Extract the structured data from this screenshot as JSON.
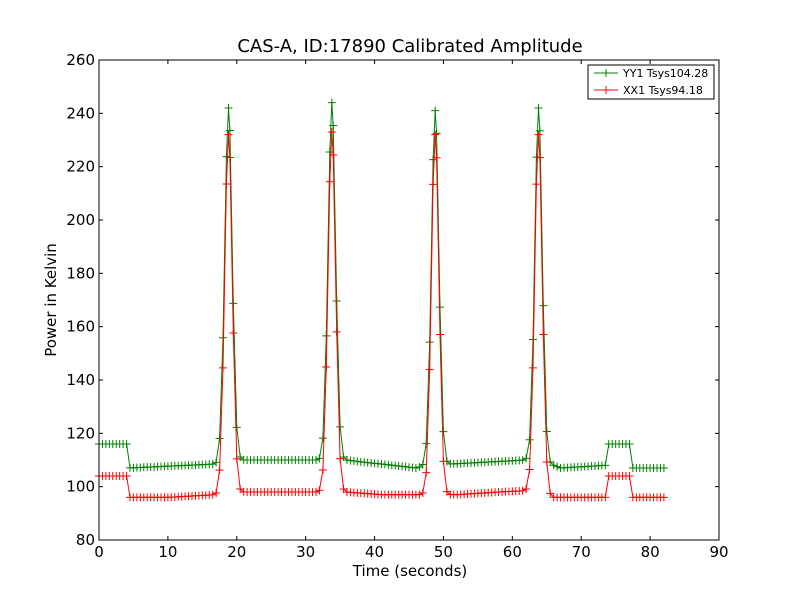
{
  "chart_data": {
    "type": "line",
    "title": "CAS-A, ID:17890 Calibrated Amplitude",
    "xlabel": "Time (seconds)",
    "ylabel": "Power in Kelvin",
    "xlim": [
      0,
      90
    ],
    "ylim": [
      80,
      260
    ],
    "xticks": [
      0,
      10,
      20,
      30,
      40,
      50,
      60,
      70,
      80,
      90
    ],
    "yticks": [
      80,
      100,
      120,
      140,
      160,
      180,
      200,
      220,
      240,
      260
    ],
    "grid": false,
    "legend_position": "top-right",
    "sample_interval": 0.5,
    "series": [
      {
        "name": "YY1 Tsys104.28",
        "color": "#008000",
        "marker": "+",
        "baseline": [
          [
            0,
            116
          ],
          [
            4,
            116
          ],
          [
            4.2,
            107
          ],
          [
            17,
            108.5
          ],
          [
            17.5,
            110
          ],
          [
            35.8,
            110
          ],
          [
            39,
            109
          ],
          [
            41,
            108.5
          ],
          [
            46,
            107
          ],
          [
            47.5,
            108
          ],
          [
            62,
            110
          ],
          [
            63,
            109
          ],
          [
            66,
            108
          ],
          [
            67,
            107
          ],
          [
            73.5,
            108
          ],
          [
            74,
            116
          ],
          [
            77,
            116
          ],
          [
            77.3,
            107
          ],
          [
            82,
            107
          ]
        ],
        "peaks": [
          {
            "center": 18.8,
            "peak": 242,
            "width": 0.55
          },
          {
            "center": 33.8,
            "peak": 244,
            "width": 0.55
          },
          {
            "center": 48.8,
            "peak": 241,
            "width": 0.55
          },
          {
            "center": 63.8,
            "peak": 242,
            "width": 0.55
          }
        ]
      },
      {
        "name": "XX1 Tsys94.18",
        "color": "#ff0000",
        "marker": "+",
        "baseline": [
          [
            0,
            104
          ],
          [
            4,
            104
          ],
          [
            4.2,
            96
          ],
          [
            10,
            96
          ],
          [
            17,
            97
          ],
          [
            17.5,
            98
          ],
          [
            35.8,
            98
          ],
          [
            41,
            97
          ],
          [
            47.5,
            97
          ],
          [
            52,
            97
          ],
          [
            58,
            98
          ],
          [
            62,
            98.5
          ],
          [
            63,
            98
          ],
          [
            66,
            96
          ],
          [
            73.5,
            96
          ],
          [
            74,
            104
          ],
          [
            77,
            104
          ],
          [
            77.3,
            96
          ],
          [
            82,
            96
          ]
        ],
        "peaks": [
          {
            "center": 18.8,
            "peak": 232,
            "width": 0.55
          },
          {
            "center": 33.8,
            "peak": 233,
            "width": 0.55
          },
          {
            "center": 48.8,
            "peak": 232,
            "width": 0.55
          },
          {
            "center": 63.8,
            "peak": 232,
            "width": 0.55
          }
        ]
      }
    ]
  }
}
